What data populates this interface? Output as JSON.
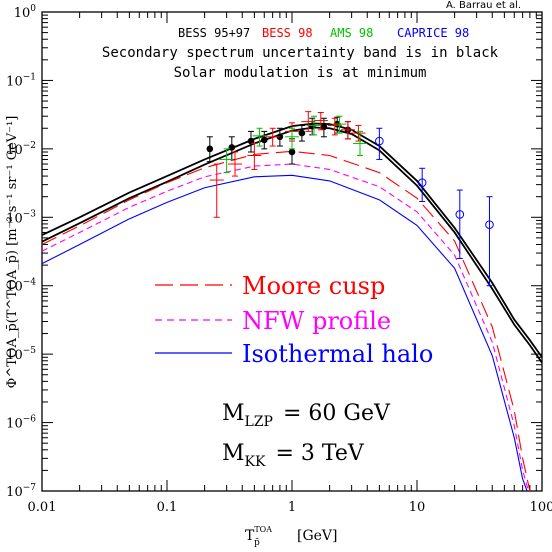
{
  "credit": "A. Barrau et al.",
  "header": {
    "datasets": [
      {
        "label": "BESS 95+97",
        "color": "#000000"
      },
      {
        "label": "BESS 98",
        "color": "#ff0000"
      },
      {
        "label": "AMS 98",
        "color": "#00c000"
      },
      {
        "label": "CAPRICE 98",
        "color": "#0000ff"
      }
    ],
    "line1": "Secondary spectrum uncertainty band is in black",
    "line2": "Solar modulation is at minimum"
  },
  "legend": [
    {
      "label": "Moore cusp",
      "color": "#ff0000",
      "dash": "long"
    },
    {
      "label": "NFW profile",
      "color": "#ff00ff",
      "dash": "short"
    },
    {
      "label": "Isothermal halo",
      "color": "#0000ff",
      "dash": "solid"
    }
  ],
  "annotations": {
    "mlzp_sym": "M",
    "mlzp_sub": "LZP",
    "mlzp_val": "= 60 GeV",
    "mkk_sym": "M",
    "mkk_sub": "KK",
    "mkk_val": "= 3 TeV"
  },
  "axes": {
    "x_tick_labels": [
      "0.01",
      "0.1",
      "1",
      "10",
      "100"
    ],
    "y_tick_exponents": [
      "0",
      "−1",
      "−2",
      "−3",
      "−4",
      "−5",
      "−6",
      "−7"
    ],
    "xlabel_sym": "T",
    "xlabel_sup": "TOA",
    "xlabel_sub": "p̄",
    "xlabel_unit": "[GeV]",
    "ylabel": "Φ^TOA_p̄(T^TOA_p̄)  [m⁻² s⁻¹ sr⁻¹ GeV⁻¹]"
  },
  "chart_data": {
    "type": "line",
    "x_scale": "log",
    "y_scale": "log",
    "xlim": [
      0.01,
      100
    ],
    "ylim": [
      1e-07,
      1
    ],
    "series": [
      {
        "name": "",
        "color": "#000000",
        "dash": "solid",
        "x": [
          0.01,
          0.02,
          0.05,
          0.1,
          0.2,
          0.5,
          1,
          1.5,
          2,
          3,
          5,
          10,
          20,
          40,
          60,
          80,
          100
        ],
        "y": [
          0.00055,
          0.001,
          0.0023,
          0.004,
          0.007,
          0.014,
          0.0215,
          0.0235,
          0.023,
          0.019,
          0.011,
          0.0034,
          0.0007,
          0.00011,
          3.2e-05,
          1.6e-05,
          9e-06
        ]
      },
      {
        "name": "",
        "color": "#000000",
        "dash": "solid",
        "x": [
          0.01,
          0.02,
          0.05,
          0.1,
          0.2,
          0.5,
          1,
          1.5,
          2,
          3,
          5,
          10,
          20,
          40,
          60,
          80,
          100
        ],
        "y": [
          0.00044,
          0.00082,
          0.0019,
          0.0033,
          0.0059,
          0.012,
          0.0185,
          0.0205,
          0.02,
          0.0165,
          0.0095,
          0.0029,
          0.0006,
          9e-05,
          2.7e-05,
          1.35e-05,
          7.5e-06
        ]
      },
      {
        "name": "Moore cusp",
        "color": "#ff0000",
        "dash": "long",
        "x": [
          0.01,
          0.02,
          0.05,
          0.1,
          0.2,
          0.5,
          1,
          2,
          5,
          10,
          20,
          40,
          60,
          70,
          80
        ],
        "y": [
          0.0004,
          0.00075,
          0.0018,
          0.0032,
          0.0053,
          0.0083,
          0.0092,
          0.008,
          0.0045,
          0.0019,
          0.00045,
          2.5e-05,
          1.5e-06,
          3e-07,
          1e-07
        ]
      },
      {
        "name": "NFW profile",
        "color": "#ff00ff",
        "dash": "short",
        "x": [
          0.01,
          0.02,
          0.05,
          0.1,
          0.2,
          0.5,
          1,
          2,
          5,
          10,
          20,
          40,
          60,
          70,
          78
        ],
        "y": [
          0.00032,
          0.0006,
          0.0014,
          0.0024,
          0.0039,
          0.0056,
          0.006,
          0.005,
          0.0028,
          0.0012,
          0.00028,
          1.5e-05,
          9e-07,
          2e-07,
          1e-07
        ]
      },
      {
        "name": "Isothermal halo",
        "color": "#0000ff",
        "dash": "solid",
        "x": [
          0.01,
          0.02,
          0.05,
          0.1,
          0.2,
          0.5,
          1,
          2,
          5,
          10,
          20,
          40,
          60,
          70,
          76
        ],
        "y": [
          0.00021,
          0.0004,
          0.00095,
          0.00165,
          0.0027,
          0.0039,
          0.0041,
          0.0034,
          0.0018,
          0.00076,
          0.00018,
          9.5e-06,
          6e-07,
          1.5e-07,
          1e-07
        ]
      }
    ],
    "points": [
      {
        "set": "BESS 95+97",
        "color": "#000000",
        "marker": "filled-circle",
        "data": [
          [
            0.22,
            0.01,
            0.015,
            0.0065
          ],
          [
            0.33,
            0.0105,
            0.015,
            0.007
          ],
          [
            0.47,
            0.013,
            0.018,
            0.009
          ],
          [
            0.6,
            0.0135,
            0.018,
            0.01
          ],
          [
            0.8,
            0.015,
            0.02,
            0.011
          ],
          [
            1.0,
            0.009,
            0.014,
            0.006
          ],
          [
            1.2,
            0.017,
            0.022,
            0.013
          ],
          [
            1.45,
            0.0215,
            0.028,
            0.016
          ],
          [
            1.8,
            0.021,
            0.028,
            0.015
          ],
          [
            2.3,
            0.023,
            0.029,
            0.017
          ],
          [
            2.8,
            0.019,
            0.025,
            0.014
          ]
        ]
      },
      {
        "set": "BESS 98",
        "color": "#ff0000",
        "marker": "cross",
        "data": [
          [
            0.25,
            0.0035,
            0.006,
            0.001
          ],
          [
            0.35,
            0.006,
            0.009,
            0.004
          ],
          [
            0.5,
            0.008,
            0.012,
            0.005
          ],
          [
            0.7,
            0.015,
            0.02,
            0.011
          ],
          [
            1.0,
            0.018,
            0.024,
            0.013
          ],
          [
            1.35,
            0.025,
            0.035,
            0.018
          ],
          [
            1.7,
            0.026,
            0.034,
            0.019
          ],
          [
            2.2,
            0.022,
            0.028,
            0.016
          ],
          [
            2.8,
            0.019,
            0.025,
            0.014
          ],
          [
            3.4,
            0.017,
            0.022,
            0.013
          ]
        ]
      },
      {
        "set": "AMS 98",
        "color": "#00c000",
        "marker": "cross",
        "data": [
          [
            0.3,
            0.007,
            0.01,
            0.0045
          ],
          [
            0.55,
            0.0155,
            0.02,
            0.011
          ],
          [
            1.0,
            0.015,
            0.02,
            0.01
          ],
          [
            1.5,
            0.022,
            0.03,
            0.016
          ],
          [
            2.4,
            0.023,
            0.03,
            0.017
          ],
          [
            3.5,
            0.012,
            0.018,
            0.008
          ]
        ]
      },
      {
        "set": "CAPRICE 98",
        "color": "#0000ff",
        "marker": "open-circle",
        "data": [
          [
            5.0,
            0.013,
            0.02,
            0.007
          ],
          [
            11.0,
            0.0032,
            0.0052,
            0.0017
          ],
          [
            22.0,
            0.0011,
            0.0025,
            0.00025
          ],
          [
            38.0,
            0.00078,
            0.002,
            0.0001
          ]
        ]
      }
    ]
  }
}
